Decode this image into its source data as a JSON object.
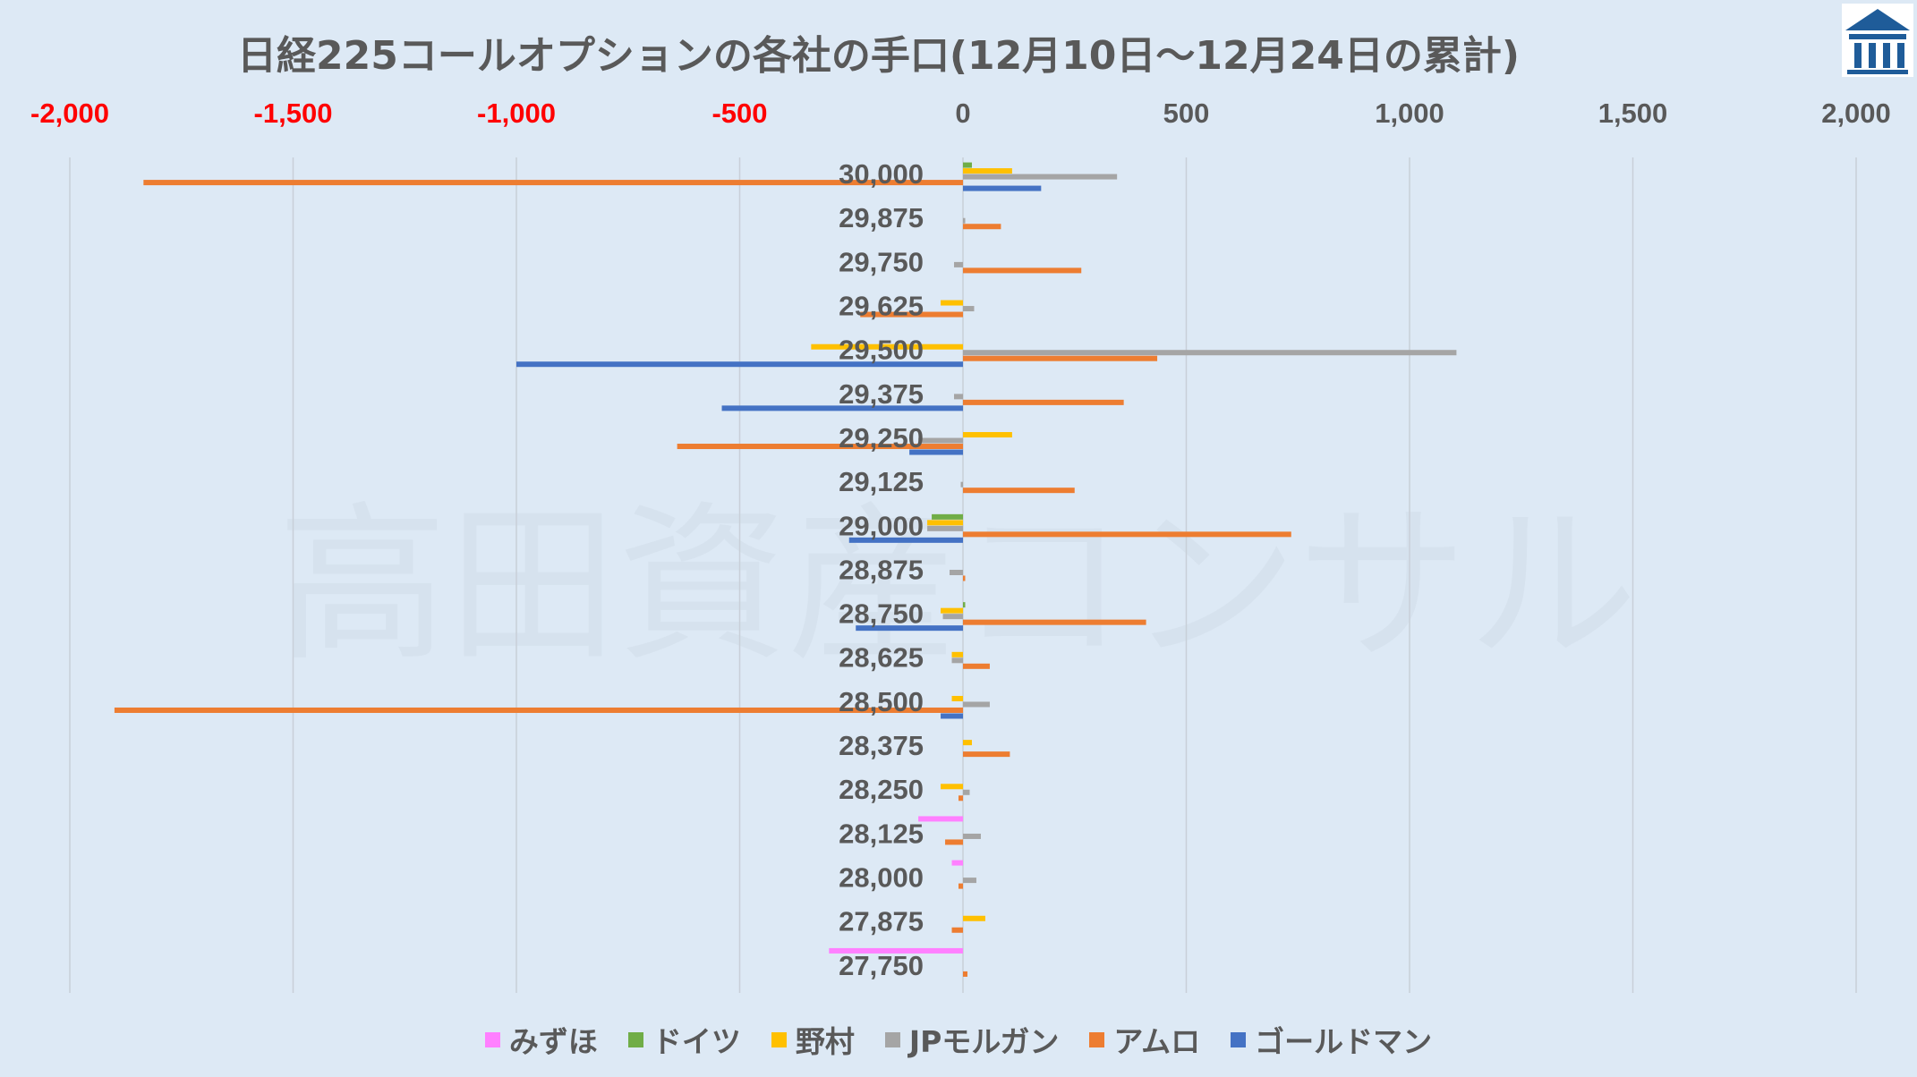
{
  "title": "日経225コールオプションの各社の手口(12月10日〜12月24日の累計)",
  "watermark": "高田資産コンサル",
  "logo": {
    "name": "institution-logo",
    "color": "#1f5c99"
  },
  "chart_data": {
    "type": "bar",
    "orientation": "horizontal",
    "xlim": [
      -2000,
      2000
    ],
    "x_ticks": [
      -2000,
      -1500,
      -1000,
      -500,
      0,
      500,
      1000,
      1500,
      2000
    ],
    "x_tick_labels": [
      "-2,000",
      "-1,500",
      "-1,000",
      "-500",
      "0",
      "500",
      "1,000",
      "1,500",
      "2,000"
    ],
    "negative_tick_color": "#ff0000",
    "positive_tick_color": "#595959",
    "grid": "vertical",
    "legend_position": "bottom",
    "categories": [
      "30,000",
      "29,875",
      "29,750",
      "29,625",
      "29,500",
      "29,375",
      "29,250",
      "29,125",
      "29,000",
      "28,875",
      "28,750",
      "28,625",
      "28,500",
      "28,375",
      "28,250",
      "28,125",
      "28,000",
      "27,875",
      "27,750"
    ],
    "series": [
      {
        "name": "みずほ",
        "color": "#ff80ff",
        "values": [
          0,
          0,
          0,
          0,
          0,
          0,
          0,
          0,
          0,
          0,
          0,
          0,
          0,
          0,
          0,
          -100,
          -25,
          0,
          -300
        ]
      },
      {
        "name": "ドイツ",
        "color": "#70ad47",
        "values": [
          20,
          0,
          0,
          0,
          0,
          0,
          0,
          0,
          -70,
          0,
          5,
          0,
          0,
          0,
          0,
          0,
          0,
          0,
          0
        ]
      },
      {
        "name": "野村",
        "color": "#ffc000",
        "values": [
          110,
          0,
          0,
          -50,
          -340,
          0,
          110,
          0,
          -80,
          0,
          -50,
          -25,
          -25,
          20,
          -50,
          0,
          0,
          50,
          0
        ]
      },
      {
        "name": "JPモルガン",
        "color": "#a5a5a5",
        "values": [
          345,
          5,
          -20,
          25,
          1105,
          -20,
          -100,
          -5,
          -80,
          -30,
          -45,
          -25,
          60,
          0,
          15,
          40,
          30,
          0,
          0
        ]
      },
      {
        "name": "アムロ",
        "color": "#ed7d31",
        "values": [
          -1835,
          85,
          265,
          -230,
          435,
          360,
          -640,
          250,
          735,
          5,
          410,
          60,
          -1900,
          105,
          -10,
          -40,
          -10,
          -25,
          10
        ]
      },
      {
        "name": "ゴールドマン",
        "color": "#4472c4",
        "values": [
          175,
          0,
          0,
          0,
          -1000,
          -540,
          -120,
          0,
          -255,
          0,
          -240,
          0,
          -50,
          0,
          0,
          0,
          0,
          0,
          0
        ]
      }
    ]
  }
}
